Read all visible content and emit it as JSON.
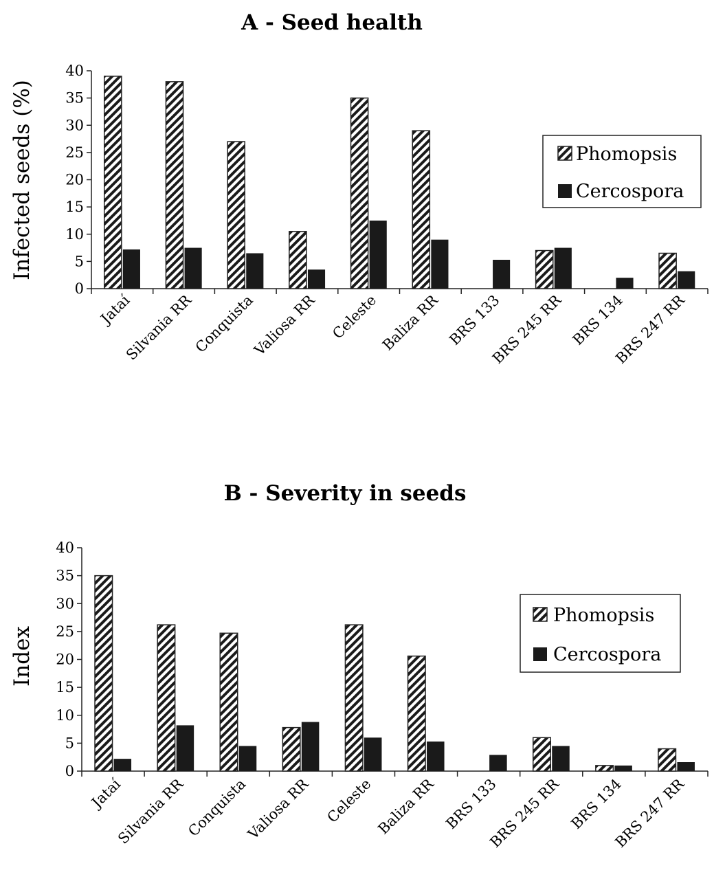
{
  "chart_data": [
    {
      "type": "bar",
      "title": "A - Seed health",
      "xlabel": "",
      "ylabel": "Infected  seeds (%)",
      "ylim": [
        0,
        40
      ],
      "yticks": [
        "0",
        "5",
        "10",
        "15",
        "20",
        "25",
        "30",
        "35",
        "40"
      ],
      "categories": [
        "Jataí",
        "Silvania RR",
        "Conquista",
        "Valiosa RR",
        "Celeste",
        "Baliza RR",
        "BRS 133",
        "BRS 245 RR",
        "BRS 134",
        "BRS 247 RR"
      ],
      "series": [
        {
          "name": "Phomopsis",
          "pattern": "hatched",
          "values": [
            39,
            38,
            27,
            10.5,
            35,
            29,
            0,
            7,
            0,
            6.5
          ]
        },
        {
          "name": "Cercospora",
          "pattern": "solid",
          "values": [
            7.2,
            7.5,
            6.5,
            3.5,
            12.5,
            9,
            5.3,
            7.5,
            2,
            3.2
          ]
        }
      ],
      "legend_position": "right",
      "grid": false
    },
    {
      "type": "bar",
      "title": "B - Severity in seeds",
      "xlabel": "",
      "ylabel": "Index",
      "ylim": [
        0,
        40
      ],
      "yticks": [
        "0",
        "5",
        "10",
        "15",
        "20",
        "25",
        "30",
        "35",
        "40"
      ],
      "categories": [
        "Jataí",
        "Silvania RR",
        "Conquista",
        "Valiosa RR",
        "Celeste",
        "Baliza RR",
        "BRS 133",
        "BRS 245 RR",
        "BRS 134",
        "BRS 247 RR"
      ],
      "series": [
        {
          "name": "Phomopsis",
          "pattern": "hatched",
          "values": [
            35,
            26.2,
            24.7,
            7.8,
            26.2,
            20.6,
            0,
            6,
            1,
            4
          ]
        },
        {
          "name": "Cercospora",
          "pattern": "solid",
          "values": [
            2.2,
            8.2,
            4.5,
            8.8,
            6,
            5.3,
            2.9,
            4.5,
            1,
            1.6
          ]
        }
      ],
      "legend_position": "right",
      "grid": false
    }
  ],
  "colors": {
    "bar_fill": "#1a1a1a",
    "hatch": "#1a1a1a",
    "axis": "#222222",
    "background": "#ffffff"
  }
}
